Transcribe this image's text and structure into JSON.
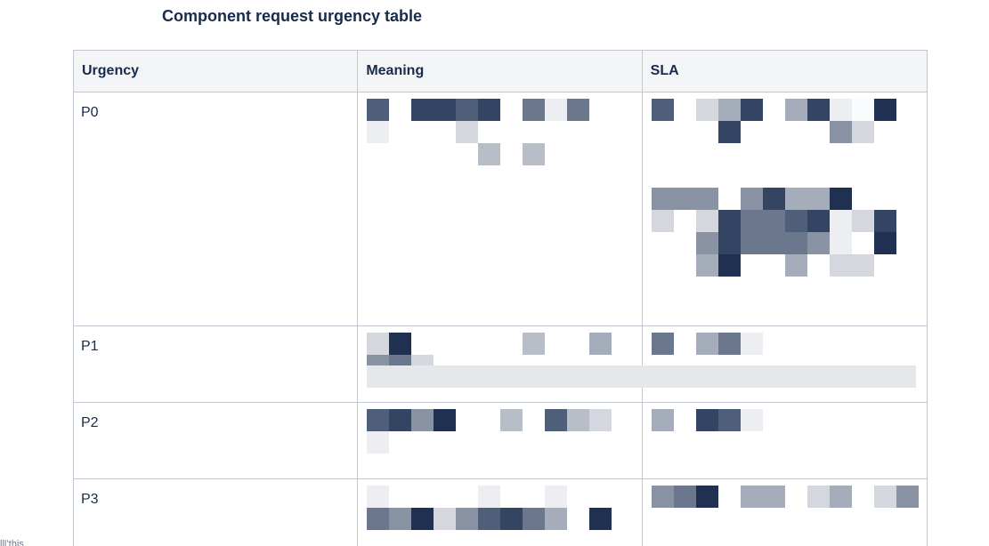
{
  "title": "Component request urgency table",
  "table": {
    "headers": {
      "urgency": "Urgency",
      "meaning": "Meaning",
      "sla": "SLA"
    },
    "rows": [
      {
        "urgency": "P0"
      },
      {
        "urgency": "P1"
      },
      {
        "urgency": "P2"
      },
      {
        "urgency": "P3"
      }
    ]
  },
  "footer_fragment": "lll’this",
  "colors": {
    "header_bg": "#f4f5f7",
    "border": "#c1c7d0",
    "text": "#172b4d"
  }
}
